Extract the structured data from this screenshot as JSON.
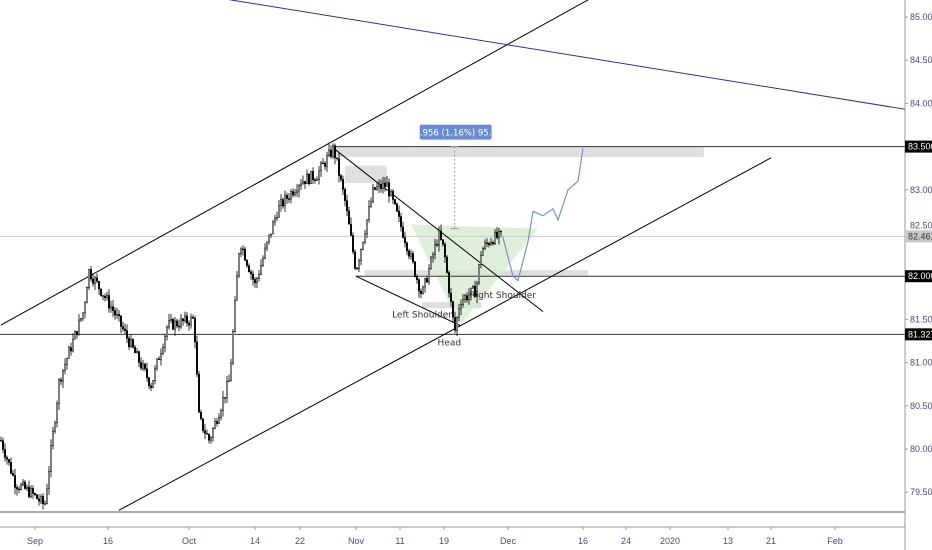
{
  "chart_data": {
    "type": "candlestick",
    "title": "",
    "colors": {
      "candle": "#000000",
      "projection": "#7b8fd6",
      "trendline_purple": "#3b2e8c",
      "zone": "#d9d9d9",
      "pattern_fill": "#d7ebcf",
      "measure_label_bg": "#6b8bd0"
    },
    "y_axis": {
      "ticks": [
        "85.000",
        "84.500",
        "84.000",
        "83.500",
        "83.000",
        "82.500",
        "82.000",
        "81.500",
        "81.000",
        "80.500",
        "80.000",
        "79.500"
      ],
      "range": [
        79.2,
        85.2
      ]
    },
    "x_axis": {
      "ticks": [
        {
          "label": "Sep",
          "date": "2019-09-01"
        },
        {
          "label": "16",
          "date": "2019-09-16"
        },
        {
          "label": "Oct",
          "date": "2019-10-01"
        },
        {
          "label": "14",
          "date": "2019-10-14"
        },
        {
          "label": "22",
          "date": "2019-10-22"
        },
        {
          "label": "Nov",
          "date": "2019-11-01"
        },
        {
          "label": "11",
          "date": "2019-11-11"
        },
        {
          "label": "19",
          "date": "2019-11-19"
        },
        {
          "label": "Dec",
          "date": "2019-12-01"
        },
        {
          "label": "16",
          "date": "2019-12-16"
        },
        {
          "label": "24",
          "date": "2019-12-24"
        },
        {
          "label": "2020",
          "date": "2020-01-01"
        },
        {
          "label": "13",
          "date": "2020-01-13"
        },
        {
          "label": "21",
          "date": "2020-01-21"
        },
        {
          "label": "Feb",
          "date": "2020-02-01"
        }
      ]
    },
    "price_path": [
      [
        "2019-08-25",
        80.1
      ],
      [
        "2019-08-28",
        79.6
      ],
      [
        "2019-08-31",
        79.5
      ],
      [
        "2019-09-03",
        79.35
      ],
      [
        "2019-09-06",
        80.8
      ],
      [
        "2019-09-11",
        81.6
      ],
      [
        "2019-09-12",
        82.07
      ],
      [
        "2019-09-17",
        81.6
      ],
      [
        "2019-09-24",
        80.74
      ],
      [
        "2019-09-27",
        81.43
      ],
      [
        "2019-10-02",
        81.5
      ],
      [
        "2019-10-03",
        80.34
      ],
      [
        "2019-10-05",
        80.1
      ],
      [
        "2019-10-09",
        80.8
      ],
      [
        "2019-10-11",
        82.42
      ],
      [
        "2019-10-14",
        81.9
      ],
      [
        "2019-10-18",
        82.77
      ],
      [
        "2019-10-22",
        83.1
      ],
      [
        "2019-10-25",
        83.17
      ],
      [
        "2019-10-28",
        83.48
      ],
      [
        "2019-10-30",
        82.88
      ],
      [
        "2019-11-01",
        82.07
      ],
      [
        "2019-11-05",
        83.0
      ],
      [
        "2019-11-08",
        83.06
      ],
      [
        "2019-11-12",
        82.42
      ],
      [
        "2019-11-15",
        81.78
      ],
      [
        "2019-11-18",
        82.48
      ],
      [
        "2019-11-19",
        82.3
      ],
      [
        "2019-11-21",
        81.35
      ],
      [
        "2019-11-22",
        81.72
      ],
      [
        "2019-11-25",
        81.84
      ],
      [
        "2019-11-26",
        82.3
      ],
      [
        "2019-11-28",
        82.44
      ],
      [
        "2019-11-30",
        82.46
      ]
    ],
    "projection_path": [
      [
        "2019-11-30",
        82.46
      ],
      [
        "2019-12-02",
        82.0
      ],
      [
        "2019-12-03",
        81.95
      ],
      [
        "2019-12-05",
        82.4
      ],
      [
        "2019-12-06",
        82.75
      ],
      [
        "2019-12-08",
        82.7
      ],
      [
        "2019-12-10",
        82.78
      ],
      [
        "2019-12-11",
        82.65
      ],
      [
        "2019-12-13",
        83.0
      ],
      [
        "2019-12-15",
        83.1
      ],
      [
        "2019-12-16",
        83.48
      ]
    ],
    "last_price": "82.461",
    "price_labels": [
      "83.500",
      "82.000",
      "81.327"
    ],
    "horizontal_lines": [
      {
        "price": 83.5,
        "from": "2019-10-28"
      },
      {
        "price": 82.0,
        "from": "2019-11-01"
      },
      {
        "price": 81.327,
        "from": "2019-08-20"
      }
    ],
    "trend_lines": [
      {
        "name": "channel-upper",
        "p1": [
          "2019-08-25",
          81.435
        ],
        "p2": [
          "2019-12-17",
          85.2
        ],
        "color": "#000000"
      },
      {
        "name": "channel-lower",
        "p1": [
          "2019-09-18",
          79.29
        ],
        "p2": [
          "2020-01-21",
          83.37
        ],
        "color": "#000000"
      },
      {
        "name": "purple",
        "p1": [
          "2019-10-09",
          85.2
        ],
        "p2": [
          "2020-02-16",
          83.9
        ],
        "color": "#3b2e8c"
      },
      {
        "name": "descending",
        "p1": [
          "2019-10-28",
          83.48
        ],
        "p2": [
          "2019-12-08",
          81.59
        ],
        "color": "#000000"
      },
      {
        "name": "neckline-low",
        "p1": [
          "2019-11-01",
          82.0
        ],
        "p2": [
          "2019-11-22",
          81.43
        ],
        "color": "#000000"
      }
    ],
    "zones": [
      {
        "from": "2019-10-28",
        "to": "2020-01-08",
        "top": 83.5,
        "bottom": 83.38
      },
      {
        "from": "2019-10-30",
        "to": "2019-11-08",
        "top": 83.28,
        "bottom": 83.08
      },
      {
        "from": "2019-11-03",
        "to": "2019-12-17",
        "top": 82.07,
        "bottom": 82.01
      },
      {
        "from": "2019-11-15",
        "to": "2019-11-26",
        "top": 81.7,
        "bottom": 81.63
      }
    ],
    "pattern_triangle": [
      [
        "2019-11-13",
        82.6
      ],
      [
        "2019-12-07",
        82.55
      ],
      [
        "2019-11-22",
        81.43
      ]
    ],
    "measure": {
      "date": "2019-11-21",
      "from": 82.55,
      "to": 83.5,
      "label": "0.956 (1.16%) 95.6"
    },
    "annotations": [
      {
        "text": "Left Shoulder",
        "date": "2019-11-15",
        "price": 81.52
      },
      {
        "text": "Right Shoulder",
        "date": "2019-11-30",
        "price": 81.75
      },
      {
        "text": "Head",
        "date": "2019-11-20",
        "price": 81.2
      }
    ]
  }
}
